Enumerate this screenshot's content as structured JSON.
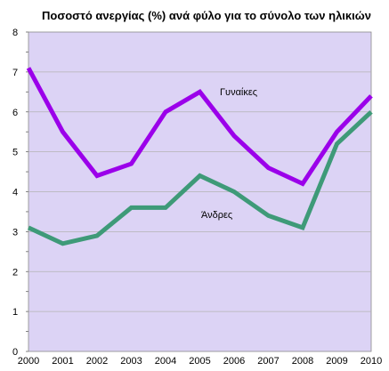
{
  "chart_data": {
    "type": "line",
    "title": "Ποσοστό ανεργίας (%) ανά φύλο για το σύνολο των ηλικιών",
    "xlabel": "",
    "ylabel": "",
    "x": [
      "2000",
      "2001",
      "2002",
      "2003",
      "2004",
      "2005",
      "2006",
      "2007",
      "2008",
      "2009",
      "2010"
    ],
    "ylim": [
      0,
      8
    ],
    "yticks": [
      "0",
      "1",
      "2",
      "3",
      "4",
      "5",
      "6",
      "7",
      "8"
    ],
    "grid": true,
    "legend": "none",
    "plot_background": "#dcd3f5",
    "series": [
      {
        "name": "Γυναίκες",
        "color": "#9b00ea",
        "values": [
          7.1,
          5.5,
          4.4,
          4.7,
          6.0,
          6.5,
          5.4,
          4.6,
          4.2,
          5.5,
          6.4
        ]
      },
      {
        "name": "Άνδρες",
        "color": "#3e9a78",
        "values": [
          3.1,
          2.7,
          2.9,
          3.6,
          3.6,
          4.4,
          4.0,
          3.4,
          3.1,
          5.2,
          6.0
        ]
      }
    ]
  }
}
